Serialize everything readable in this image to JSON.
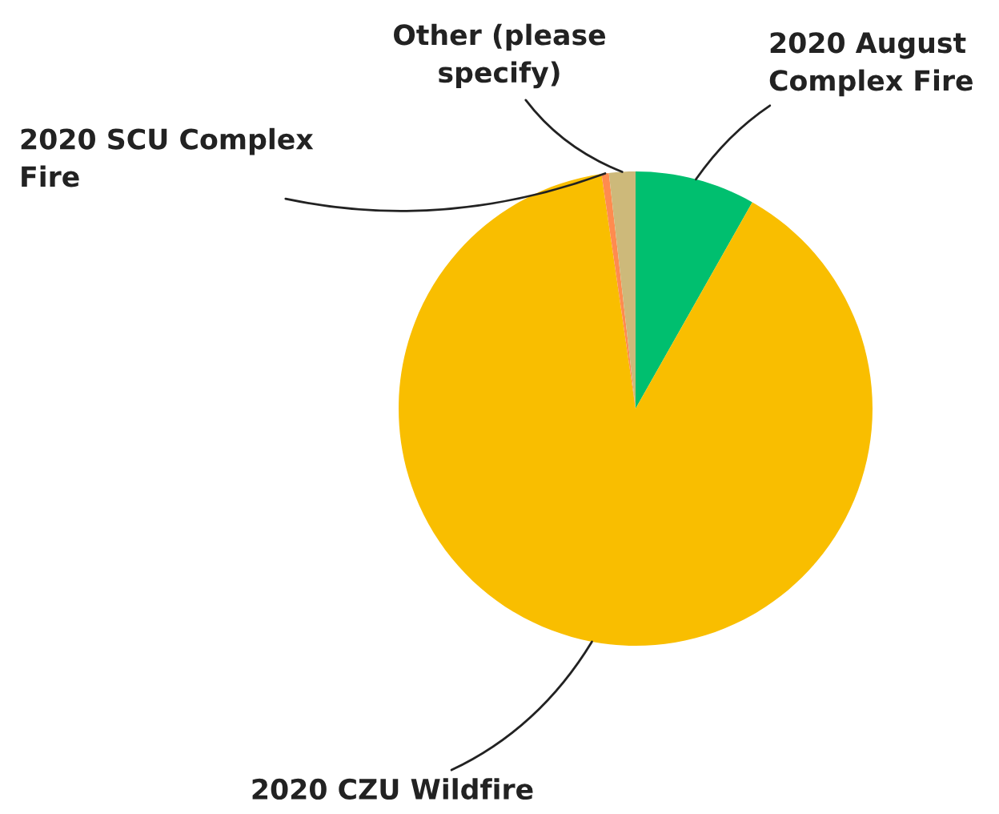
{
  "chart_data": {
    "type": "pie",
    "categories": [
      "2020 August\nComplex Fire",
      "2020 CZU Wildfire",
      "2020 SCU Complex\nFire",
      "Other (please\nspecify)"
    ],
    "values": [
      8.2,
      89.5,
      0.5,
      1.8
    ],
    "colors": [
      "#00bf6f",
      "#f9be00",
      "#ff8b4f",
      "#cdb97a"
    ]
  }
}
